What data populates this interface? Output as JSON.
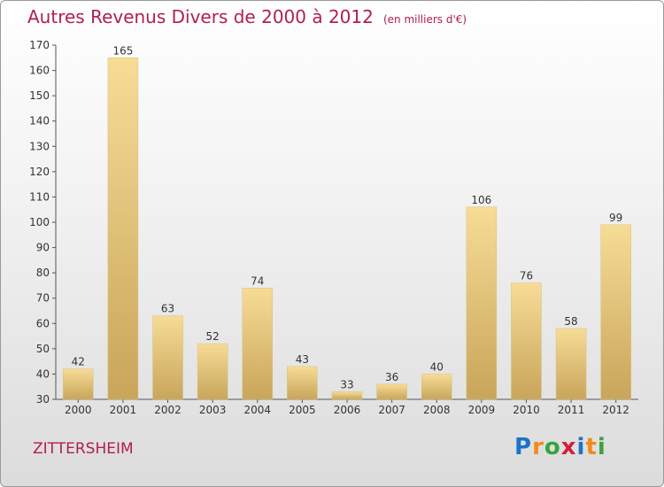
{
  "title": "Autres Revenus Divers de 2000 à 2012",
  "unit": "(en milliers d'€)",
  "commune": "ZITTERSHEIM",
  "logo": {
    "text": "Proxiti",
    "letters": [
      {
        "ch": "P",
        "color": "#1e73c8"
      },
      {
        "ch": "r",
        "color": "#f08a1c"
      },
      {
        "ch": "o",
        "color": "#3aa33a"
      },
      {
        "ch": "x",
        "color": "#d11f3d"
      },
      {
        "ch": "i",
        "color": "#1e73c8"
      },
      {
        "ch": "t",
        "color": "#f08a1c"
      },
      {
        "ch": "i",
        "color": "#3aa33a"
      }
    ]
  },
  "colors": {
    "accent": "#b0204d",
    "bar_light": "#f7dc96",
    "bar_dark": "#c8a55a"
  },
  "chart_data": {
    "type": "bar",
    "categories": [
      "2000",
      "2001",
      "2002",
      "2003",
      "2004",
      "2005",
      "2006",
      "2007",
      "2008",
      "2009",
      "2010",
      "2011",
      "2012"
    ],
    "values": [
      42,
      165,
      63,
      52,
      74,
      43,
      33,
      36,
      40,
      106,
      76,
      58,
      99
    ],
    "ylim": [
      30,
      170
    ],
    "yticks": [
      30,
      40,
      50,
      60,
      70,
      80,
      90,
      100,
      110,
      120,
      130,
      140,
      150,
      160,
      170
    ],
    "grid": false,
    "data_labels": true
  }
}
